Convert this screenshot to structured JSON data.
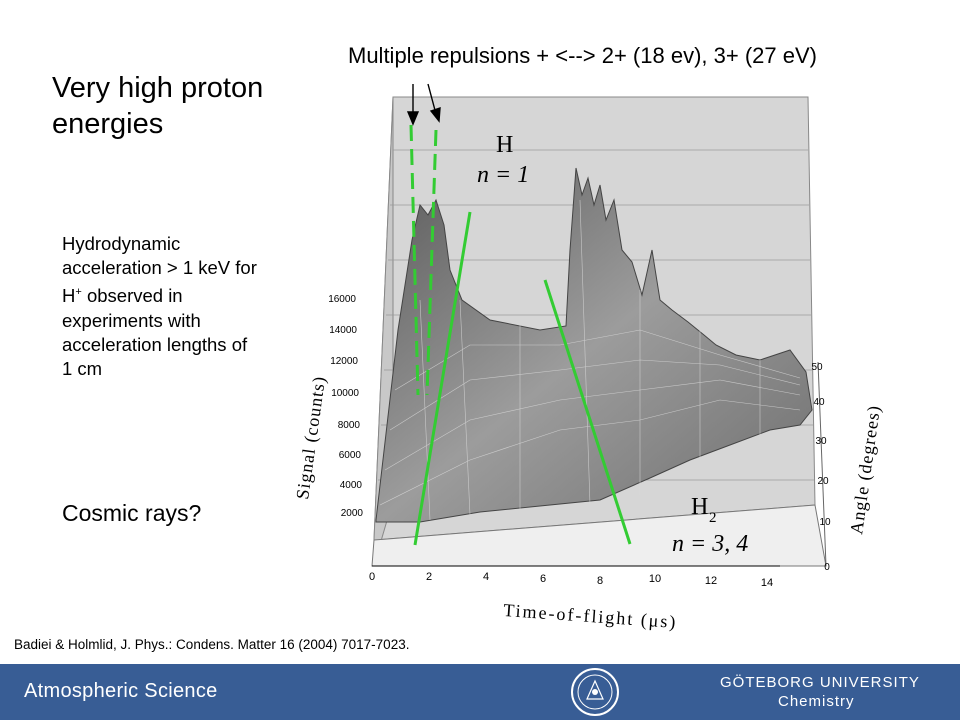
{
  "slide": {
    "title": "Very high proton energies",
    "annotation": "Multiple repulsions + <--> 2+ (18 ev), 3+ (27 eV)",
    "hydro_text_main": "Hydrodynamic acceleration > 1 keV for H",
    "hydro_text_sup": "+",
    "hydro_text_rest": "observed in experiments with acceleration lengths of 1 cm",
    "cosmic": "Cosmic rays?",
    "citation": "Badiei & Holmlid, J. Phys.: Condens. Matter 16 (2004) 7017-7023."
  },
  "footer": {
    "department": "Atmospheric Science",
    "university": "GÖTEBORG UNIVERSITY",
    "faculty": "Chemistry",
    "background": "#385d95"
  },
  "chart_data": {
    "type": "surface",
    "xlabel": "Time-of-flight (μs)",
    "ylabel": "Signal (counts)",
    "zlabel": "Angle (degrees)",
    "x_ticks": [
      "0",
      "2",
      "4",
      "6",
      "8",
      "10",
      "12",
      "14"
    ],
    "y_ticks": [
      "2000",
      "4000",
      "6000",
      "8000",
      "10000",
      "12000",
      "14000",
      "16000"
    ],
    "z_ticks": [
      "0",
      "10",
      "20",
      "30",
      "40",
      "50"
    ],
    "labels": [
      {
        "species": "H",
        "state": "n = 1"
      },
      {
        "species": "H",
        "subscript": "2",
        "state": "n = 3, 4"
      }
    ],
    "line_colors": {
      "markers": "#33cc33",
      "surface": "#8c8c8c"
    }
  }
}
